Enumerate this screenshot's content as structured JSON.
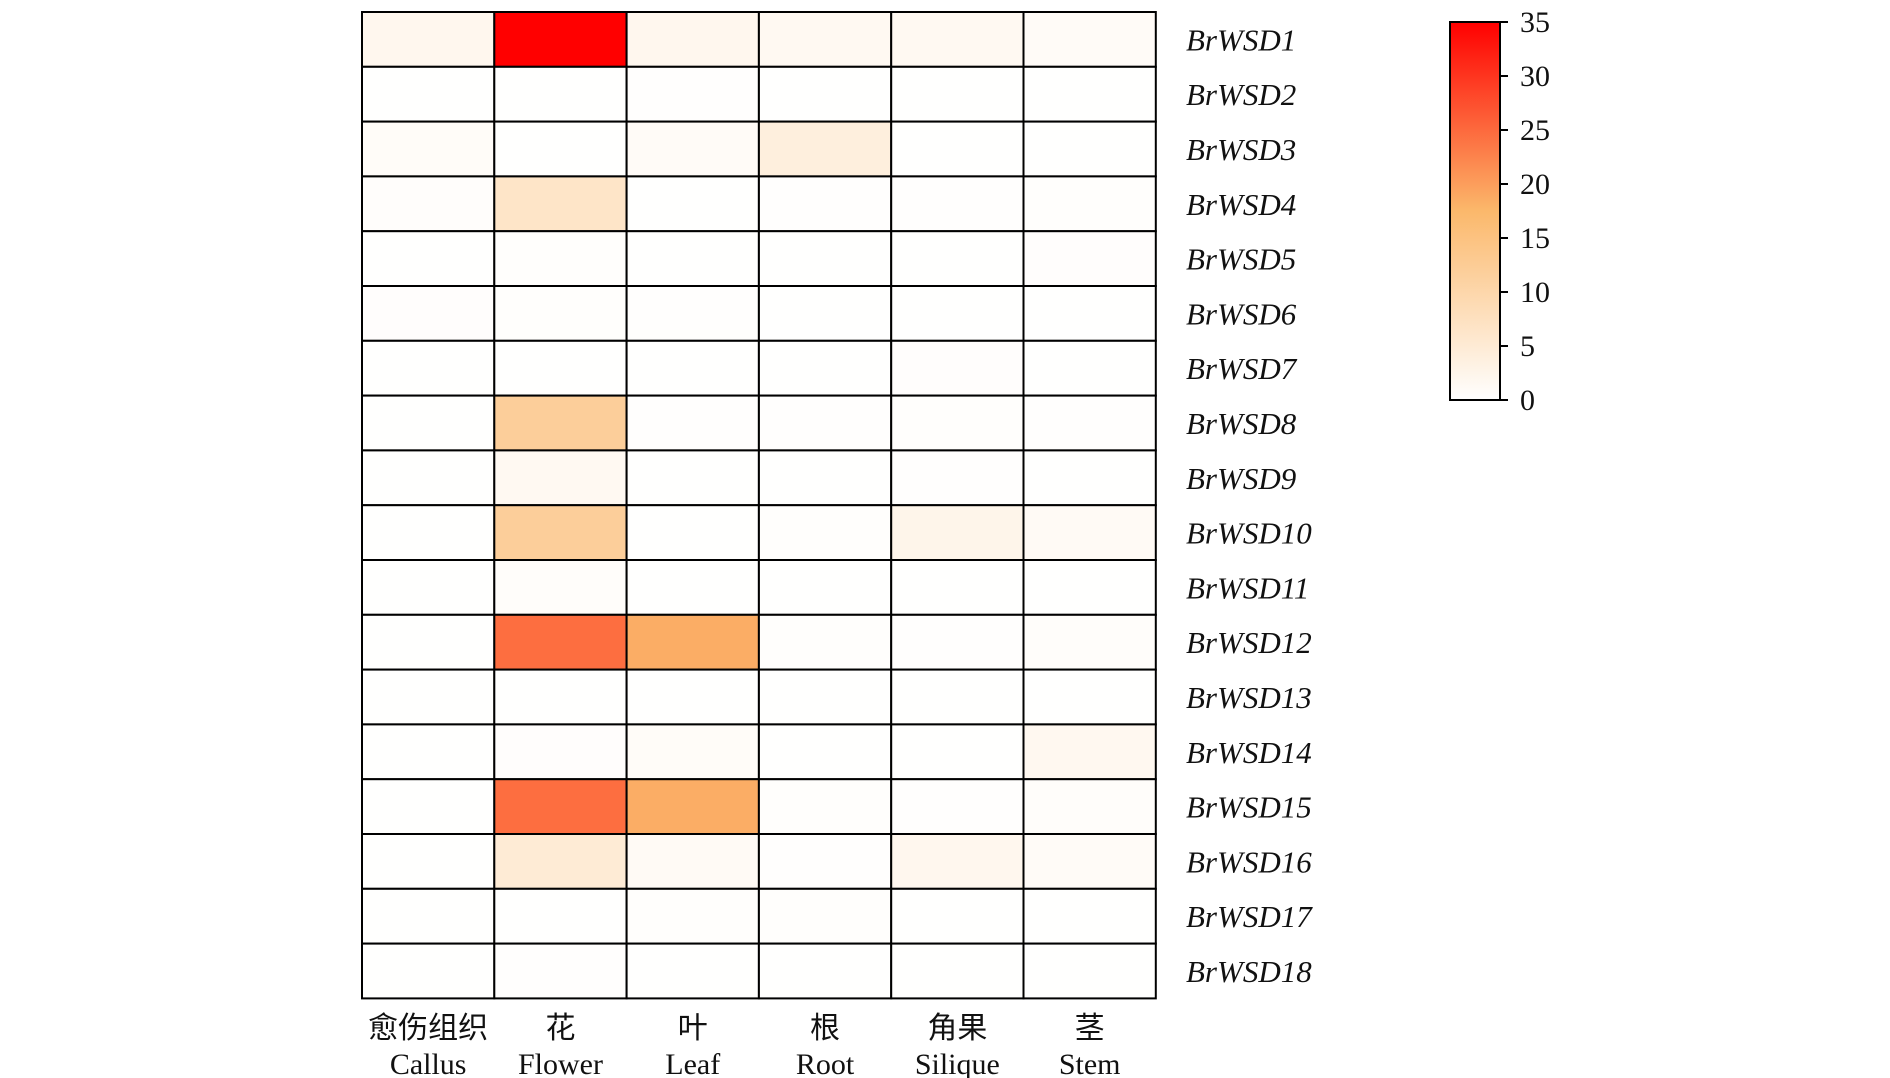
{
  "chart_data": {
    "type": "heatmap",
    "columns": [
      {
        "cn": "愈伤组织",
        "en": "Callus"
      },
      {
        "cn": "花",
        "en": "Flower"
      },
      {
        "cn": "叶",
        "en": "Leaf"
      },
      {
        "cn": "根",
        "en": "Root"
      },
      {
        "cn": "角果",
        "en": "Silique"
      },
      {
        "cn": "茎",
        "en": "Stem"
      }
    ],
    "rows": [
      "BrWSD1",
      "BrWSD2",
      "BrWSD3",
      "BrWSD4",
      "BrWSD5",
      "BrWSD6",
      "BrWSD7",
      "BrWSD8",
      "BrWSD9",
      "BrWSD10",
      "BrWSD11",
      "BrWSD12",
      "BrWSD13",
      "BrWSD14",
      "BrWSD15",
      "BrWSD16",
      "BrWSD17",
      "BrWSD18"
    ],
    "values": [
      [
        2.0,
        35.0,
        2.0,
        1.5,
        1.5,
        1.0
      ],
      [
        0.1,
        0.1,
        0.2,
        0.1,
        0.1,
        0.1
      ],
      [
        0.8,
        0.1,
        1.0,
        4.0,
        0.1,
        0.1
      ],
      [
        0.5,
        6.5,
        0.1,
        0.2,
        0.2,
        0.3
      ],
      [
        0.1,
        0.3,
        0.1,
        0.1,
        0.1,
        0.4
      ],
      [
        0.4,
        0.3,
        0.2,
        0.1,
        0.1,
        0.1
      ],
      [
        0.1,
        0.1,
        0.1,
        0.1,
        0.4,
        0.1
      ],
      [
        0.1,
        12.0,
        0.2,
        0.2,
        0.3,
        0.2
      ],
      [
        0.1,
        1.5,
        0.1,
        0.1,
        0.2,
        0.1
      ],
      [
        0.1,
        12.0,
        0.1,
        0.3,
        2.5,
        1.2
      ],
      [
        0.1,
        0.6,
        0.1,
        0.1,
        0.1,
        0.1
      ],
      [
        0.1,
        24.5,
        18.5,
        0.3,
        0.2,
        0.6
      ],
      [
        0.1,
        0.1,
        0.1,
        0.1,
        0.1,
        0.1
      ],
      [
        0.1,
        0.4,
        0.8,
        0.1,
        0.1,
        1.8
      ],
      [
        0.1,
        24.5,
        18.5,
        0.3,
        0.2,
        0.6
      ],
      [
        0.1,
        5.0,
        1.2,
        0.2,
        2.0,
        1.0
      ],
      [
        0.1,
        0.1,
        0.3,
        0.3,
        0.1,
        0.1
      ],
      [
        0.1,
        0.2,
        0.1,
        0.1,
        0.1,
        0.1
      ]
    ],
    "colorbar": {
      "min": 0,
      "max": 35,
      "ticks": [
        0,
        5,
        10,
        15,
        20,
        25,
        30,
        35
      ],
      "colors": [
        "#ffffff",
        "#fbb86b",
        "#ff0000"
      ]
    }
  }
}
